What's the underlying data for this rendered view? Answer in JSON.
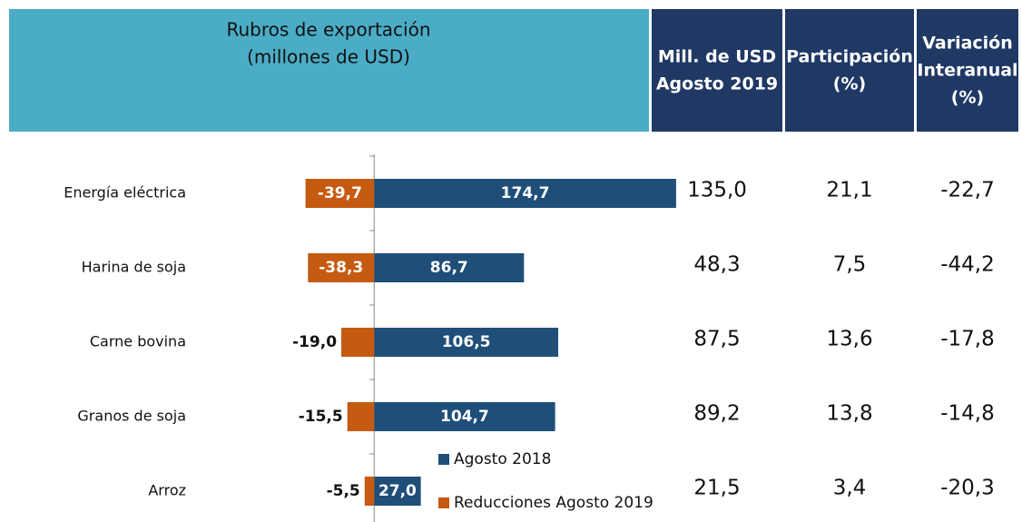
{
  "chart_data": {
    "type": "bar",
    "orientation": "horizontal",
    "title": [
      "Rubros de exportación",
      "(millones de USD)"
    ],
    "categories": [
      "Energía eléctrica",
      "Harina de soja",
      "Carne bovina",
      "Granos de soja",
      "Arroz"
    ],
    "series": [
      {
        "name": "Agosto 2018",
        "color": "#1f4e79",
        "values": [
          174.7,
          86.7,
          106.5,
          104.7,
          27.0
        ],
        "value_labels": [
          "174,7",
          "86,7",
          "106,5",
          "104,7",
          "27,0"
        ]
      },
      {
        "name": "Reducciones Agosto 2019",
        "color": "#c55a11",
        "values": [
          -39.7,
          -38.3,
          -19.0,
          -15.5,
          -5.5
        ],
        "value_labels": [
          "-39,7",
          "-38,3",
          "-19,0",
          "-15,5",
          "-5,5"
        ]
      }
    ],
    "xlim": [
      -50,
      180
    ],
    "legend": "bottom"
  },
  "table": {
    "columns": [
      {
        "header": [
          "Mill. de USD",
          "Agosto 2019"
        ],
        "values": [
          "135,0",
          "48,3",
          "87,5",
          "89,2",
          "21,5"
        ]
      },
      {
        "header": [
          "Participación",
          "(%)"
        ],
        "values": [
          "21,1",
          "7,5",
          "13,6",
          "13,8",
          "3,4"
        ]
      },
      {
        "header": [
          "Variación",
          "Interanual",
          "(%)"
        ],
        "values": [
          "-22,7",
          "-44,2",
          "-17,8",
          "-14,8",
          "-20,3"
        ]
      }
    ]
  }
}
